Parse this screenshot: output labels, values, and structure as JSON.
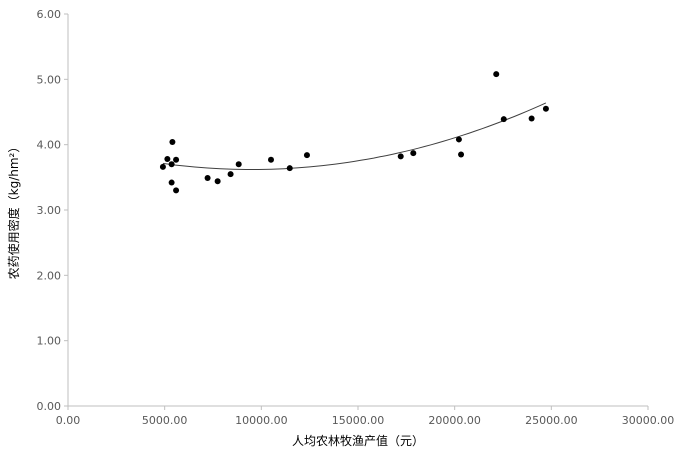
{
  "chart_data": {
    "type": "scatter",
    "title": "",
    "xlabel": "人均农林牧渔产值（元）",
    "ylabel": "农药使用密度（kg/hm²）",
    "xlim": [
      0,
      30000
    ],
    "ylim": [
      0,
      6
    ],
    "xticks": [
      0,
      5000,
      10000,
      15000,
      20000,
      25000,
      30000
    ],
    "xtick_labels": [
      "0.00",
      "5000.00",
      "10000.00",
      "15000.00",
      "20000.00",
      "25000.00",
      "30000.00"
    ],
    "yticks": [
      0,
      1,
      2,
      3,
      4,
      5,
      6
    ],
    "ytick_labels": [
      "0.00",
      "1.00",
      "2.00",
      "3.00",
      "4.00",
      "5.00",
      "6.00"
    ],
    "grid": false,
    "marker_color": "#000000",
    "points": [
      [
        4910,
        3.66
      ],
      [
        5140,
        3.78
      ],
      [
        5400,
        4.04
      ],
      [
        5590,
        3.77
      ],
      [
        5360,
        3.7
      ],
      [
        5360,
        3.42
      ],
      [
        5590,
        3.3
      ],
      [
        7220,
        3.49
      ],
      [
        7740,
        3.44
      ],
      [
        8410,
        3.55
      ],
      [
        8830,
        3.7
      ],
      [
        10500,
        3.77
      ],
      [
        11470,
        3.64
      ],
      [
        12360,
        3.84
      ],
      [
        17210,
        3.82
      ],
      [
        17860,
        3.87
      ],
      [
        20220,
        4.08
      ],
      [
        20330,
        3.85
      ],
      [
        22150,
        5.08
      ],
      [
        22540,
        4.39
      ],
      [
        23980,
        4.4
      ],
      [
        24720,
        4.55
      ]
    ],
    "trendline": {
      "type": "polynomial",
      "order": 2,
      "coefficients": [
        4.4e-09,
        -8.36e-05,
        4.017
      ],
      "x_range": [
        4910,
        24720
      ],
      "color": "#404040"
    }
  }
}
